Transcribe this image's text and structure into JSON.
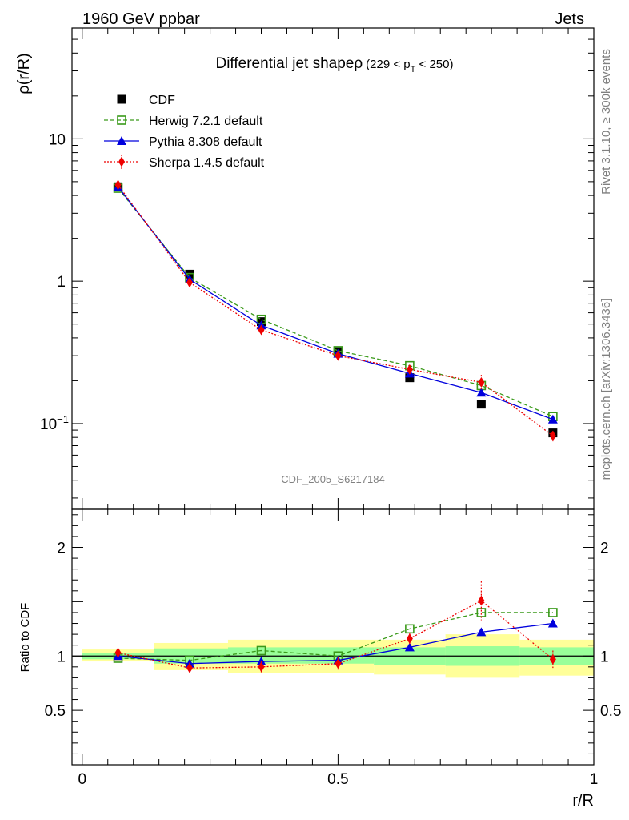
{
  "header": {
    "left": "1960 GeV ppbar",
    "right": "Jets"
  },
  "side_labels": {
    "rivet": "Rivet 3.1.10, ≥ 300k events",
    "mcplots": "mcplots.cern.ch [arXiv:1306.3436]"
  },
  "chart_data": [
    {
      "type": "line",
      "title": "Differential jet shapeρ",
      "title_suffix": "(229 < p",
      "title_sub": "T",
      "title_end": " < 250)",
      "watermark": "CDF_2005_S6217184",
      "xlabel": "r/R",
      "ylabel": "ρ(r/R)",
      "yscale": "log",
      "ylim": [
        0.025,
        60
      ],
      "xlim": [
        -0.02,
        1.0
      ],
      "yticks": [
        {
          "v": 10,
          "label": "10"
        },
        {
          "v": 1,
          "label": "1"
        },
        {
          "v": 0.1,
          "label": "10",
          "sup": "−1"
        }
      ],
      "x": [
        0.07,
        0.21,
        0.35,
        0.5,
        0.64,
        0.78,
        0.92
      ],
      "series": [
        {
          "name": "CDF",
          "style": "data",
          "color": "#000000",
          "values": [
            4.6,
            1.12,
            0.52,
            0.32,
            0.21,
            0.137,
            0.086
          ]
        },
        {
          "name": "Herwig 7.2.1 default",
          "style": "herwig",
          "color": "#3a9a1a",
          "values": [
            4.5,
            1.06,
            0.54,
            0.325,
            0.255,
            0.185,
            0.112
          ]
        },
        {
          "name": "Pythia 8.308 default",
          "style": "pythia",
          "color": "#0000dd",
          "values": [
            4.6,
            1.03,
            0.49,
            0.31,
            0.225,
            0.165,
            0.107
          ]
        },
        {
          "name": "Sherpa 1.4.5 default",
          "style": "sherpa",
          "color": "#ee0000",
          "values": [
            4.75,
            0.98,
            0.455,
            0.3,
            0.24,
            0.195,
            0.082
          ],
          "err": [
            0.0,
            0.0,
            0.02,
            0.02,
            0.015,
            0.025,
            0.007
          ]
        }
      ]
    },
    {
      "type": "line",
      "title": "",
      "xlabel": "r/R",
      "ylabel": "Ratio to CDF",
      "ylim": [
        0.0,
        2.35
      ],
      "xlim": [
        -0.02,
        1.0
      ],
      "yticks": [
        {
          "v": 2,
          "label": "2"
        },
        {
          "v": 1,
          "label": "1"
        },
        {
          "v": 0.5,
          "label": "0.5"
        }
      ],
      "xticks": [
        {
          "v": 0,
          "label": "0"
        },
        {
          "v": 0.5,
          "label": "0.5"
        },
        {
          "v": 1,
          "label": "1"
        }
      ],
      "bands": [
        {
          "x0": 0.0,
          "x1": 0.14,
          "inner": [
            0.97,
            1.03
          ],
          "outer": [
            0.95,
            1.06
          ]
        },
        {
          "x0": 0.14,
          "x1": 0.285,
          "inner": [
            0.93,
            1.07
          ],
          "outer": [
            0.87,
            1.12
          ]
        },
        {
          "x0": 0.285,
          "x1": 0.43,
          "inner": [
            0.93,
            1.08
          ],
          "outer": [
            0.84,
            1.15
          ]
        },
        {
          "x0": 0.43,
          "x1": 0.57,
          "inner": [
            0.93,
            1.08
          ],
          "outer": [
            0.84,
            1.15
          ]
        },
        {
          "x0": 0.57,
          "x1": 0.71,
          "inner": [
            0.92,
            1.08
          ],
          "outer": [
            0.83,
            1.15
          ]
        },
        {
          "x0": 0.71,
          "x1": 0.855,
          "inner": [
            0.91,
            1.09
          ],
          "outer": [
            0.8,
            1.2
          ]
        },
        {
          "x0": 0.855,
          "x1": 1.0,
          "inner": [
            0.92,
            1.08
          ],
          "outer": [
            0.82,
            1.15
          ]
        }
      ],
      "x": [
        0.07,
        0.21,
        0.35,
        0.5,
        0.64,
        0.78,
        0.92
      ],
      "series": [
        {
          "name": "Herwig 7.2.1 default",
          "style": "herwig",
          "color": "#3a9a1a",
          "values": [
            0.98,
            0.96,
            1.05,
            1.0,
            1.25,
            1.4,
            1.4
          ]
        },
        {
          "name": "Pythia 8.308 default",
          "style": "pythia",
          "color": "#0000dd",
          "values": [
            1.0,
            0.93,
            0.95,
            0.96,
            1.08,
            1.22,
            1.3
          ]
        },
        {
          "name": "Sherpa 1.4.5 default",
          "style": "sherpa",
          "color": "#ee0000",
          "values": [
            1.03,
            0.89,
            0.9,
            0.93,
            1.16,
            1.51,
            0.97
          ],
          "err": [
            0.02,
            0.05,
            0.05,
            0.06,
            0.05,
            0.18,
            0.08
          ]
        }
      ]
    }
  ]
}
